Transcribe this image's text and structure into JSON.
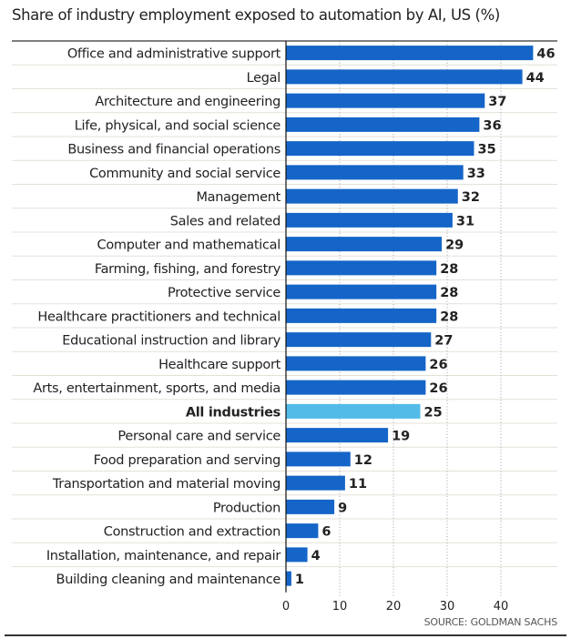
{
  "chart_data": {
    "type": "bar",
    "orientation": "horizontal",
    "title": "Share of industry employment exposed to automation by AI, US (%)",
    "xlabel": "",
    "ylabel": "",
    "xlim": [
      0,
      46
    ],
    "xticks": [
      0,
      10,
      20,
      30,
      40
    ],
    "grid": "vertical dotted",
    "categories": [
      "Office and administrative support",
      "Legal",
      "Architecture and engineering",
      "Life, physical, and social science",
      "Business and financial operations",
      "Community and social service",
      "Management",
      "Sales and related",
      "Computer and mathematical",
      "Farming, fishing, and forestry",
      "Protective service",
      "Healthcare practitioners and technical",
      "Educational instruction and library",
      "Healthcare support",
      "Arts, entertainment, sports, and media",
      "All industries",
      "Personal care and service",
      "Food preparation and serving",
      "Transportation and material moving",
      "Production",
      "Construction and extraction",
      "Installation, maintenance, and repair",
      "Building cleaning and maintenance"
    ],
    "values": [
      46,
      44,
      37,
      36,
      35,
      33,
      32,
      31,
      29,
      28,
      28,
      28,
      27,
      26,
      26,
      25,
      19,
      12,
      11,
      9,
      6,
      4,
      1
    ],
    "highlight": "All industries",
    "colors": {
      "bar": "#1565c8",
      "highlight": "#52bbe8",
      "label": "#222222",
      "grid": "#999999",
      "row_rule": "#e3e1d8"
    }
  },
  "source": "SOURCE: GOLDMAN SACHS"
}
